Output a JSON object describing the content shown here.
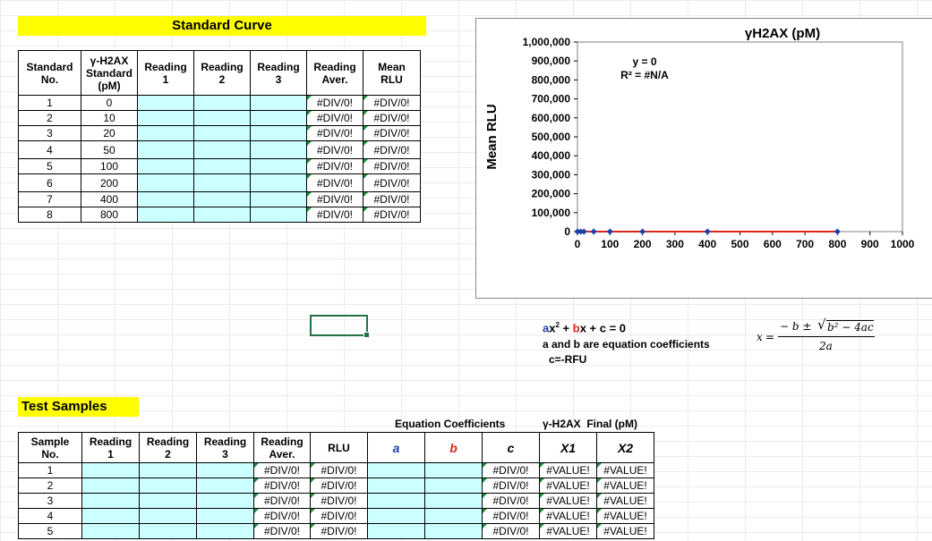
{
  "standard_curve": {
    "title": "Standard Curve",
    "headers": [
      "Standard No.",
      "γ-H2AX Standard (pM)",
      "Reading 1",
      "Reading 2",
      "Reading 3",
      "Reading Aver.",
      "Mean RLU"
    ],
    "header_lines": [
      [
        "Standard",
        "No."
      ],
      [
        "γ-H2AX",
        "Standard",
        "(pM)"
      ],
      [
        "Reading",
        "1"
      ],
      [
        "Reading",
        "2"
      ],
      [
        "Reading",
        "3"
      ],
      [
        "Reading",
        "Aver."
      ],
      [
        "Mean",
        "RLU"
      ]
    ],
    "rows": [
      {
        "no": "1",
        "std": "0",
        "aver": "#DIV/0!",
        "mean": "#DIV/0!"
      },
      {
        "no": "2",
        "std": "10",
        "aver": "#DIV/0!",
        "mean": "#DIV/0!"
      },
      {
        "no": "3",
        "std": "20",
        "aver": "#DIV/0!",
        "mean": "#DIV/0!"
      },
      {
        "no": "4",
        "std": "50",
        "aver": "#DIV/0!",
        "mean": "#DIV/0!"
      },
      {
        "no": "5",
        "std": "100",
        "aver": "#DIV/0!",
        "mean": "#DIV/0!"
      },
      {
        "no": "6",
        "std": "200",
        "aver": "#DIV/0!",
        "mean": "#DIV/0!"
      },
      {
        "no": "7",
        "std": "400",
        "aver": "#DIV/0!",
        "mean": "#DIV/0!"
      },
      {
        "no": "8",
        "std": "800",
        "aver": "#DIV/0!",
        "mean": "#DIV/0!"
      }
    ]
  },
  "chart_data": {
    "type": "scatter",
    "title": "γH2AX (pM)",
    "xlabel": "",
    "ylabel": "Mean RLU",
    "xlim": [
      0,
      1000
    ],
    "ylim": [
      0,
      1000000
    ],
    "x_ticks": [
      "0",
      "100",
      "200",
      "300",
      "400",
      "500",
      "600",
      "700",
      "800",
      "900",
      "1000"
    ],
    "y_ticks": [
      "0",
      "100,000",
      "200,000",
      "300,000",
      "400,000",
      "500,000",
      "600,000",
      "700,000",
      "800,000",
      "900,000",
      "1,000,000"
    ],
    "series": [
      {
        "x": [
          0,
          10,
          20,
          50,
          100,
          200,
          400,
          800
        ],
        "y": [
          0,
          0,
          0,
          0,
          0,
          0,
          0,
          0
        ]
      }
    ],
    "trendline": {
      "equation": "y = 0",
      "r2": "R² = #N/A",
      "x": [
        0,
        800
      ],
      "y": [
        0,
        0
      ]
    },
    "grid": false,
    "legend": "none",
    "colors": {
      "points": "#1f3fa8",
      "trendline": "#e0261b"
    }
  },
  "equation_notes": {
    "line1_a": "a",
    "line1_x2": "x",
    "line1_plus1": " + ",
    "line1_b": "b",
    "line1_rest": "x + c = 0",
    "line2": "a and b are equation coefficients",
    "line3": "c=-RFU",
    "quadratic": {
      "x": "x",
      "eq": "=",
      "numerator_left": "− b ±",
      "radicand": "b² − 4ac",
      "denominator": "2a"
    },
    "colors": {
      "a": "#1f3fa8",
      "b": "#e0261b"
    }
  },
  "test_samples": {
    "title": "Test Samples",
    "group_eq": "Equation Coefficients",
    "group_final": "γ-H2AX  Final (pM)",
    "header_lines": [
      [
        "Sample",
        "No."
      ],
      [
        "Reading",
        "1"
      ],
      [
        "Reading",
        "2"
      ],
      [
        "Reading",
        "3"
      ],
      [
        "Reading",
        "Aver."
      ],
      [
        "RLU"
      ],
      [
        "a"
      ],
      [
        "b"
      ],
      [
        "c"
      ],
      [
        "X1"
      ],
      [
        "X2"
      ]
    ],
    "rows": [
      {
        "no": "1",
        "aver": "#DIV/0!",
        "rlu": "#DIV/0!",
        "c": "#DIV/0!",
        "x1": "#VALUE!",
        "x2": "#VALUE!"
      },
      {
        "no": "2",
        "aver": "#DIV/0!",
        "rlu": "#DIV/0!",
        "c": "#DIV/0!",
        "x1": "#VALUE!",
        "x2": "#VALUE!"
      },
      {
        "no": "3",
        "aver": "#DIV/0!",
        "rlu": "#DIV/0!",
        "c": "#DIV/0!",
        "x1": "#VALUE!",
        "x2": "#VALUE!"
      },
      {
        "no": "4",
        "aver": "#DIV/0!",
        "rlu": "#DIV/0!",
        "c": "#DIV/0!",
        "x1": "#VALUE!",
        "x2": "#VALUE!"
      },
      {
        "no": "5",
        "aver": "#DIV/0!",
        "rlu": "#DIV/0!",
        "c": "#DIV/0!",
        "x1": "#VALUE!",
        "x2": "#VALUE!"
      }
    ]
  }
}
